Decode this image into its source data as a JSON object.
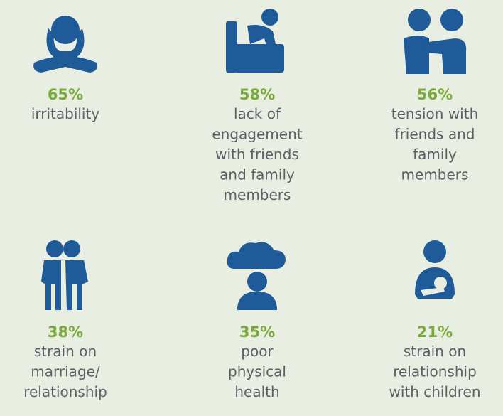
{
  "items": [
    {
      "percent": "65%",
      "lines": [
        "irritability"
      ]
    },
    {
      "percent": "58%",
      "lines": [
        "lack of",
        "engagement",
        "with friends",
        "and family",
        "members"
      ]
    },
    {
      "percent": "56%",
      "lines": [
        "tension with",
        "friends and",
        "family",
        "members"
      ]
    },
    {
      "percent": "38%",
      "lines": [
        "strain on",
        "marriage/",
        "relationship"
      ]
    },
    {
      "percent": "35%",
      "lines": [
        "poor",
        "physical",
        "health"
      ]
    },
    {
      "percent": "21%",
      "lines": [
        "strain on",
        "relationship",
        "with children"
      ]
    }
  ]
}
